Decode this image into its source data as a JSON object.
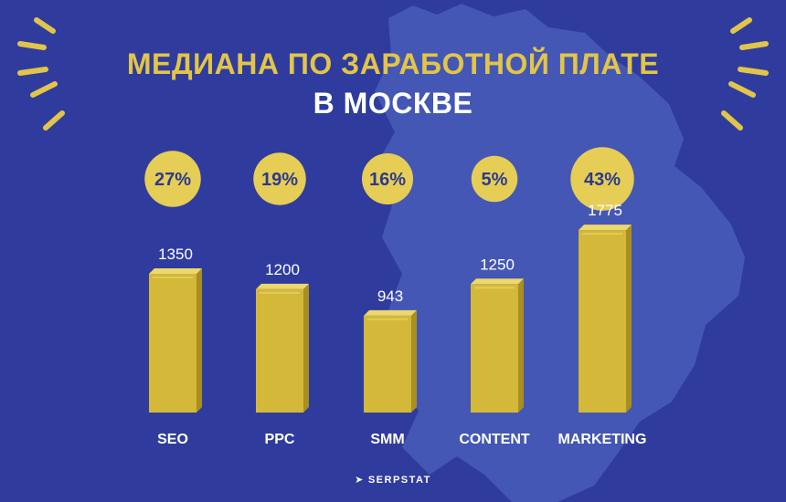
{
  "header": {
    "title_line1": "МЕДИАНА ПО ЗАРАБОТНОЙ ПЛАТЕ",
    "title_line2": "В МОСКВЕ"
  },
  "brand": {
    "logo_text": "SERPSTAT",
    "icon": "serpstat-logo-icon"
  },
  "colors": {
    "background": "#2f3c9e",
    "map": "#4457b4",
    "bar_front": "#d3b839",
    "bar_side": "#a88f1f",
    "bar_top": "#ecd86c",
    "accent": "#e2c548",
    "badge": "#e6cd55",
    "badge_text": "#2b3a8f",
    "label_text": "#ffffff"
  },
  "chart_data": {
    "type": "bar",
    "title": "МЕДИАНА ПО ЗАРАБОТНОЙ ПЛАТЕ В МОСКВЕ",
    "categories": [
      "SEO",
      "PPC",
      "SMM",
      "CONTENT",
      "MARKETING"
    ],
    "values": [
      1350,
      1200,
      943,
      1250,
      1775
    ],
    "value_labels": [
      "1350",
      "1200",
      "943",
      "1250",
      "1775"
    ],
    "percentages": [
      "27%",
      "19%",
      "16%",
      "5%",
      "43%"
    ],
    "percent_values": [
      27,
      19,
      16,
      5,
      43
    ],
    "xlabel": "",
    "ylabel": "",
    "ylim": [
      0,
      1800
    ],
    "grid": false,
    "legend": "none"
  }
}
